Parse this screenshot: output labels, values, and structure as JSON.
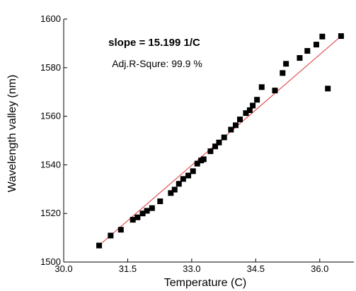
{
  "chart_data": {
    "type": "scatter",
    "xlabel": "Temperature (C)",
    "ylabel": "Wavelength valley (nm)",
    "xlim": [
      30.0,
      36.8
    ],
    "ylim": [
      1500,
      1600
    ],
    "xticks": [
      30.0,
      31.5,
      33.0,
      34.5,
      36.0
    ],
    "xtick_labels": [
      "30.0",
      "31.5",
      "33.0",
      "34.5",
      "36.0"
    ],
    "yticks": [
      1500,
      1520,
      1540,
      1560,
      1580,
      1600
    ],
    "ytick_labels": [
      "1500",
      "1520",
      "1540",
      "1560",
      "1580",
      "1600"
    ],
    "grid": false,
    "annotations": {
      "slope": "slope = 15.199 1/C",
      "adj_r": "Adj.R-Squre: 99.9 %"
    },
    "series": [
      {
        "marker": "square",
        "color": "#000000",
        "x": [
          30.83,
          31.1,
          31.34,
          31.62,
          31.73,
          31.85,
          31.95,
          32.07,
          32.26,
          32.51,
          32.6,
          32.7,
          32.8,
          32.92,
          33.03,
          33.13,
          33.22,
          33.28,
          33.44,
          33.55,
          33.64,
          33.76,
          33.92,
          34.03,
          34.13,
          34.27,
          34.36,
          34.43,
          34.53,
          34.64,
          34.95,
          35.13,
          35.21,
          35.53,
          35.71,
          35.92,
          36.06,
          36.19,
          36.5
        ],
        "y": [
          1506.8,
          1510.9,
          1513.3,
          1517.4,
          1518.4,
          1520.0,
          1521.1,
          1522.2,
          1525.0,
          1528.4,
          1529.8,
          1532.2,
          1534.2,
          1535.6,
          1537.4,
          1540.5,
          1541.8,
          1542.3,
          1545.6,
          1547.6,
          1549.2,
          1551.3,
          1554.5,
          1556.3,
          1558.7,
          1561.3,
          1562.5,
          1564.4,
          1566.8,
          1572.0,
          1570.6,
          1577.8,
          1581.6,
          1584.0,
          1586.9,
          1589.5,
          1592.8,
          1571.4,
          1593.0
        ]
      }
    ],
    "fit_line": {
      "color": "#e03030",
      "x": [
        30.78,
        36.5
      ],
      "y": [
        1506.1,
        1593.0
      ]
    }
  }
}
